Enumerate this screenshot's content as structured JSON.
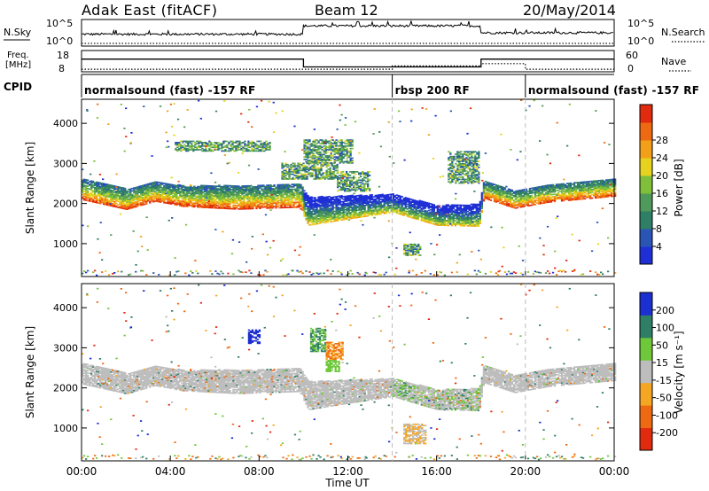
{
  "header": {
    "station": "Adak East (fitACF)",
    "beam": "Beam 12",
    "date": "20/May/2014"
  },
  "noise_panel": {
    "left_label": "N.Sky",
    "left_ticks": [
      "10^5",
      "10^0"
    ],
    "right_label": "N.Search",
    "right_ticks": [
      "10^5",
      "10^0"
    ]
  },
  "freq_panel": {
    "left_label_line1": "Freq.",
    "left_label_line2": "[MHz]",
    "left_ticks": [
      "18",
      "8"
    ],
    "right_label": "Nave",
    "right_ticks": [
      "60",
      "0"
    ]
  },
  "cpid_panel": {
    "label": "CPID",
    "segments": [
      {
        "start_ut": "00:00",
        "end_ut": "14:00",
        "name": "normalsound (fast) -157 RF"
      },
      {
        "start_ut": "14:00",
        "end_ut": "20:00",
        "name": "rbsp 200 RF"
      },
      {
        "start_ut": "20:00",
        "end_ut": "24:00",
        "name": "normalsound (fast) -157 RF"
      }
    ]
  },
  "x_axis": {
    "label": "Time UT",
    "ticks": [
      "00:00",
      "04:00",
      "08:00",
      "12:00",
      "16:00",
      "20:00",
      "00:00"
    ]
  },
  "power_panel": {
    "ylabel": "Slant Range [km]",
    "yticks": [
      "1000",
      "2000",
      "3000",
      "4000"
    ],
    "colorbar_label": "Power [dB]",
    "colorbar_ticks": [
      "4",
      "8",
      "12",
      "16",
      "20",
      "24",
      "28"
    ]
  },
  "velocity_panel": {
    "ylabel": "Slant Range [km]",
    "yticks": [
      "1000",
      "2000",
      "3000",
      "4000"
    ],
    "colorbar_label": "Velocity [m s⁻¹]",
    "colorbar_ticks": [
      "200",
      "100",
      "50",
      "15",
      "-15",
      "-50",
      "-100",
      "-200"
    ]
  },
  "colors": {
    "power_scale": [
      "#1f2fd6",
      "#2a55b5",
      "#2f7f66",
      "#4f9a5a",
      "#7fbf3a",
      "#e6d21f",
      "#f2a019",
      "#ee6a12",
      "#e02b0e"
    ],
    "velocity_scale": [
      "#1c2fd0",
      "#2f7f66",
      "#6ec83a",
      "#bdbdbd",
      "#f5a623",
      "#ee6a12",
      "#e02b0e"
    ],
    "ground_scatter": "#bdbdbd"
  },
  "chart_data": [
    {
      "type": "line",
      "panel": "noise",
      "x_unit": "hours UT",
      "series": [
        {
          "name": "N.Sky",
          "style": "solid",
          "x": [
            0,
            10,
            10,
            18,
            18,
            24
          ],
          "y_log10": [
            2.2,
            3.2,
            4.0,
            3.7,
            2.5,
            2.3
          ]
        },
        {
          "name": "N.Search",
          "style": "dotted",
          "x": [
            0,
            24
          ],
          "y_log10": [
            0.2,
            0.2
          ]
        }
      ],
      "ylim_log10": [
        0,
        5
      ]
    },
    {
      "type": "line",
      "panel": "frequency",
      "x_unit": "hours UT",
      "series": [
        {
          "name": "Freq.",
          "style": "solid",
          "x": [
            0,
            10,
            10,
            18,
            18,
            24
          ],
          "y": [
            14.5,
            14.5,
            10.5,
            10.5,
            14.5,
            14.5
          ]
        },
        {
          "name": "Nave",
          "style": "dotted",
          "x": [
            0,
            14,
            14,
            18,
            18,
            20,
            20,
            24
          ],
          "y": [
            8,
            8,
            18,
            18,
            25,
            25,
            8,
            8
          ]
        }
      ],
      "ylim_left": [
        8,
        18
      ],
      "ylim_right": [
        0,
        60
      ]
    },
    {
      "type": "heatmap",
      "panel": "power",
      "x_unit": "hours UT",
      "y_unit": "km",
      "xlim": [
        0,
        24
      ],
      "ylim": [
        180,
        4600
      ],
      "zlim": [
        0,
        30
      ],
      "band_center_km": [
        [
          0,
          2350
        ],
        [
          2,
          2100
        ],
        [
          3.3,
          2300
        ],
        [
          4.5,
          2180
        ],
        [
          7,
          2150
        ],
        [
          9.8,
          2200
        ],
        [
          10.2,
          1800
        ],
        [
          12,
          1900
        ],
        [
          14,
          2000
        ],
        [
          16,
          1700
        ],
        [
          17.9,
          1700
        ],
        [
          18.1,
          2350
        ],
        [
          19.5,
          2100
        ],
        [
          21,
          2250
        ],
        [
          24,
          2400
        ]
      ],
      "band_width_km": [
        [
          0,
          520
        ],
        [
          4,
          500
        ],
        [
          7,
          600
        ],
        [
          9.8,
          600
        ],
        [
          10.2,
          700
        ],
        [
          14,
          450
        ],
        [
          17.9,
          550
        ],
        [
          18.1,
          450
        ],
        [
          24,
          450
        ]
      ],
      "blocks": [
        {
          "t0": 4.2,
          "t1": 8.5,
          "r0": 3300,
          "r1": 3550
        },
        {
          "t0": 9.0,
          "t1": 11.5,
          "r0": 2600,
          "r1": 3000
        },
        {
          "t0": 10.0,
          "t1": 12.2,
          "r0": 3000,
          "r1": 3600
        },
        {
          "t0": 11.5,
          "t1": 13.0,
          "r0": 2300,
          "r1": 2800
        },
        {
          "t0": 14.5,
          "t1": 15.3,
          "r0": 700,
          "r1": 1000
        },
        {
          "t0": 16.5,
          "t1": 17.9,
          "r0": 2500,
          "r1": 3300
        }
      ]
    },
    {
      "type": "heatmap",
      "panel": "velocity",
      "x_unit": "hours UT",
      "y_unit": "km",
      "xlim": [
        0,
        24
      ],
      "ylim": [
        180,
        4600
      ],
      "zlim": [
        -200,
        200
      ],
      "blocks": [
        {
          "t0": 10.3,
          "t1": 11.0,
          "r0": 2900,
          "r1": 3500,
          "v": 60
        },
        {
          "t0": 11.0,
          "t1": 11.8,
          "r0": 2700,
          "r1": 3150,
          "v": -60
        },
        {
          "t0": 11.0,
          "t1": 11.6,
          "r0": 2400,
          "r1": 2700,
          "v": 30
        },
        {
          "t0": 7.5,
          "t1": 8.0,
          "r0": 3100,
          "r1": 3450,
          "v": 200
        },
        {
          "t0": 14.5,
          "t1": 15.5,
          "r0": 600,
          "r1": 1100,
          "v": -15
        }
      ]
    }
  ]
}
